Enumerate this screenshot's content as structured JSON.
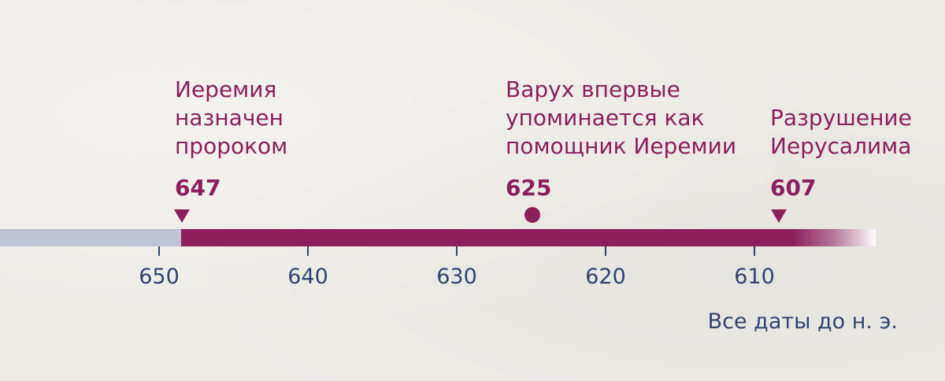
{
  "timeline": {
    "axis_ticks": [
      "650",
      "640",
      "630",
      "620",
      "610"
    ],
    "events": [
      {
        "label": "Иеремия\nназначен\nпророком",
        "year": "647",
        "marker": "triangle"
      },
      {
        "label": "Варух впервые\nупоминается как\nпомощник Иеремии",
        "year": "625",
        "marker": "dot"
      },
      {
        "label": "Разрушение\nИерусалима",
        "year": "607",
        "marker": "triangle"
      }
    ],
    "footnote": "Все даты до н. э.",
    "colors": {
      "accent": "#8c1f5c",
      "axis": "#2f4570",
      "past_bar": "#bec3d2",
      "background": "#edebe6"
    }
  }
}
